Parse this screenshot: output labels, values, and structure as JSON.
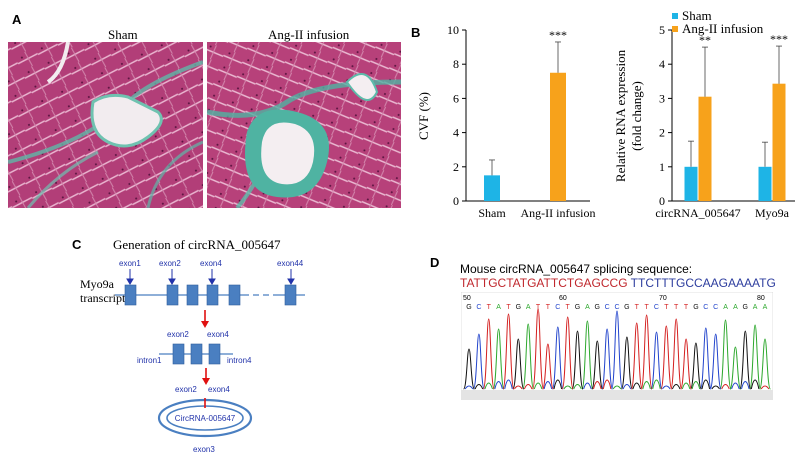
{
  "panel_a": {
    "letter": "A",
    "left_label": "Sham",
    "right_label": "Ang-II infusion"
  },
  "panel_b": {
    "letter": "B"
  },
  "panel_c": {
    "letter": "C",
    "title": "Generation of circRNA_005647",
    "transcript_label_1": "Myo9a",
    "transcript_label_2": "transcript",
    "exon1": "exon1",
    "exon2": "exon2",
    "exon4": "exon4",
    "exon44": "exon44",
    "mid_exon2": "exon2",
    "mid_exon4": "exon4",
    "intron1": "intron1",
    "intron4": "intron4",
    "bottom_exon2": "exon2",
    "bottom_exon4": "exon4",
    "circ_label": "CircRNA-005647",
    "exon3": "exon3"
  },
  "panel_d": {
    "letter": "D",
    "title": "Mouse circRNA_005647 splicing sequence:",
    "seq_red": "TATTGCTATGATTCTGAGCCG",
    "seq_blue": " TTCTTTGCCAAGAAAATG",
    "bases": "GCTATGATTCTGAGCCGTTCTTTGCCAAGAA",
    "pos_50": "50",
    "pos_60": "60",
    "pos_70": "70",
    "pos_80": "80"
  },
  "colors": {
    "sham": "#1EB4E6",
    "ang": "#F7A21B",
    "exon_box": "#4A7FC1",
    "arrow_red": "#E01010",
    "label_blue": "#2233AA",
    "seq_red": "#C0282E",
    "seq_blue": "#2D3D9E"
  },
  "chart_data": [
    {
      "type": "bar",
      "categories": [
        "Sham",
        "Ang-II infusion"
      ],
      "values": [
        1.5,
        7.5
      ],
      "errors": [
        0.9,
        1.8
      ],
      "significance": [
        "",
        "***"
      ],
      "ylabel": "CVF (%)",
      "ylim": [
        0,
        10
      ],
      "yticks": [
        "0",
        "2",
        "4",
        "6",
        "8",
        "10"
      ]
    },
    {
      "type": "bar",
      "categories": [
        "circRNA_005647",
        "Myo9a"
      ],
      "series": [
        {
          "name": "Sham",
          "values": [
            1.0,
            1.0
          ],
          "errors": [
            0.75,
            0.72
          ]
        },
        {
          "name": "Ang-II infusion",
          "values": [
            3.05,
            3.43
          ],
          "errors": [
            1.45,
            1.1
          ]
        }
      ],
      "significance": [
        "**",
        "***"
      ],
      "ylabel": "Relative RNA expression",
      "ylabel2": "(fold change)",
      "ylim": [
        0,
        5
      ],
      "yticks": [
        "0",
        "1",
        "2",
        "3",
        "4",
        "5"
      ],
      "legend": "top-left"
    }
  ]
}
